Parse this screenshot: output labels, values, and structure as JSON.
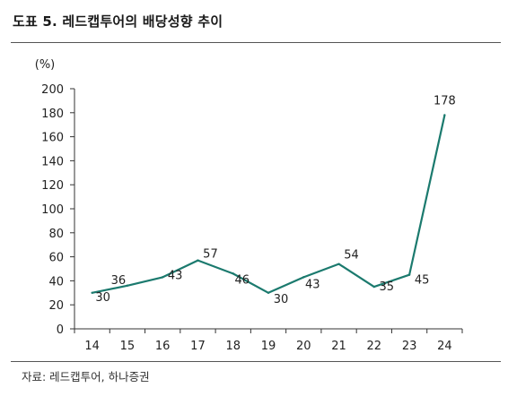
{
  "title": "도표 5. 레드캡투어의 배당성향 추이",
  "source": "자료: 레드캡투어, 하나증권",
  "chart_data": {
    "type": "line",
    "title": "도표 5. 레드캡투어의 배당성향 추이",
    "ylabel": "(%)",
    "xlabel": "",
    "categories": [
      "14",
      "15",
      "16",
      "17",
      "18",
      "19",
      "20",
      "21",
      "22",
      "23",
      "24"
    ],
    "series": [
      {
        "values": [
          30,
          36,
          43,
          57,
          46,
          30,
          43,
          54,
          35,
          45,
          178
        ],
        "color": "#1b7a6e"
      }
    ],
    "data_labels": [
      "30",
      "36",
      "43",
      "57",
      "46",
      "30",
      "43",
      "54",
      "35",
      "45",
      "178"
    ],
    "ylim": [
      0,
      200
    ],
    "yticks": [
      "0",
      "20",
      "40",
      "60",
      "80",
      "100",
      "120",
      "140",
      "160",
      "180",
      "200"
    ],
    "grid": false,
    "legend": "none"
  }
}
